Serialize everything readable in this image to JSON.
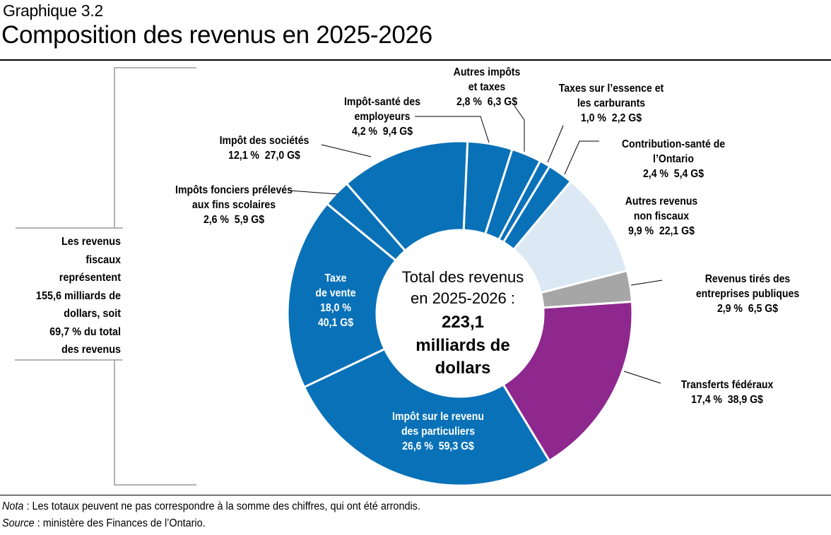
{
  "header": {
    "subtitle": "Graphique 3.2",
    "title": "Composition des revenus en 2025-2026"
  },
  "center": {
    "line1": "Total des revenus",
    "line2": "en 2025-2026 :",
    "line3": "223,1",
    "line4": "milliards de",
    "line5": "dollars"
  },
  "bracket_text": [
    "Les revenus",
    "fiscaux",
    "représentent",
    "155,6 milliards de",
    "dollars, soit",
    "69,7 % du total",
    "des revenus"
  ],
  "footer": {
    "nota_label": "Nota",
    "nota_text": " : Les totaux peuvent ne pas correspondre à la somme des chiffres, qui ont été arrondis.",
    "source_label": "Source",
    "source_text": " : ministère des Finances de l’Ontario."
  },
  "colors": {
    "tax": "#0971B8",
    "other_nontax": "#DCE8F4",
    "enterprises": "#A6A6A6",
    "federal": "#8E278E"
  },
  "chart_data": {
    "type": "pie",
    "donut": true,
    "title": "Composition des revenus en 2025-2026",
    "unit": "G$",
    "slices": [
      {
        "name": "Impôt-santé des employeurs",
        "label_lines": [
          "Impôt-santé des",
          "employeurs"
        ],
        "percent": "4,2 %",
        "amount": "9,4 G$",
        "value": 4.2,
        "color": "#0971B8"
      },
      {
        "name": "Autres impôts et taxes",
        "label_lines": [
          "Autres impôts",
          "et taxes"
        ],
        "percent": "2,8 %",
        "amount": "6,3 G$",
        "value": 2.8,
        "color": "#0971B8"
      },
      {
        "name": "Taxes sur l’essence et les carburants",
        "label_lines": [
          "Taxes sur l’essence et",
          "les carburants"
        ],
        "percent": "1,0 %",
        "amount": "2,2 G$",
        "value": 1.0,
        "color": "#0971B8"
      },
      {
        "name": "Contribution-santé de l’Ontario",
        "label_lines": [
          "Contribution-santé de",
          "l’Ontario"
        ],
        "percent": "2,4 %",
        "amount": "5,4 G$",
        "value": 2.4,
        "color": "#0971B8"
      },
      {
        "name": "Autres revenus non fiscaux",
        "label_lines": [
          "Autres revenus",
          "non fiscaux"
        ],
        "percent": "9,9 %",
        "amount": "22,1 G$",
        "value": 9.9,
        "color": "#DCE8F4"
      },
      {
        "name": "Revenus tirés des entreprises publiques",
        "label_lines": [
          "Revenus tirés des",
          "entreprises publiques"
        ],
        "percent": "2,9 %",
        "amount": "6,5 G$",
        "value": 2.9,
        "color": "#A6A6A6"
      },
      {
        "name": "Transferts fédéraux",
        "label_lines": [
          "Transferts fédéraux"
        ],
        "percent": "17,4 %",
        "amount": "38,9 G$",
        "value": 17.4,
        "color": "#8E278E"
      },
      {
        "name": "Impôt sur le revenu des particuliers",
        "label_lines": [
          "Impôt sur le revenu",
          "des particuliers"
        ],
        "percent": "26,6 %",
        "amount": "59,3 G$",
        "value": 26.6,
        "color": "#0971B8"
      },
      {
        "name": "Taxe de vente",
        "label_lines": [
          "Taxe",
          "de vente"
        ],
        "percent": "18,0 %",
        "amount": "40,1 G$",
        "value": 18.0,
        "color": "#0971B8"
      },
      {
        "name": "Impôts fonciers prélevés aux fins scolaires",
        "label_lines": [
          "Impôts fonciers prélevés",
          "aux fins scolaires"
        ],
        "percent": "2,6 %",
        "amount": "5,9 G$",
        "value": 2.6,
        "color": "#0971B8"
      },
      {
        "name": "Impôt des sociétés",
        "label_lines": [
          "Impôt des sociétés"
        ],
        "percent": "12,1 %",
        "amount": "27,0 G$",
        "value": 12.1,
        "color": "#0971B8"
      }
    ]
  }
}
